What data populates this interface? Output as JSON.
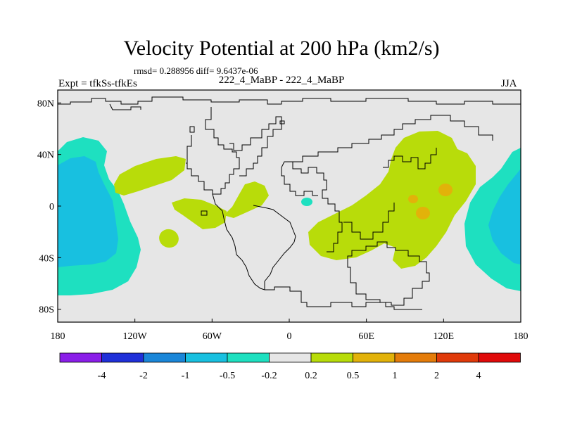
{
  "header": {
    "title": "Velocity Potential at 200 hPa (km2/s)",
    "stats": "rmsd= 0.288956 diff= 9.6437e-06",
    "expt": "Expt = tfkSs-tfkEs",
    "subtitle": "222_4_MaBP - 222_4_MaBP",
    "season": "JJA"
  },
  "map": {
    "background_color": "#e6e6e6",
    "lat_ticks": [
      {
        "value": 80,
        "label": "80N"
      },
      {
        "value": 40,
        "label": "40N"
      },
      {
        "value": 0,
        "label": "0"
      },
      {
        "value": -40,
        "label": "40S"
      },
      {
        "value": -80,
        "label": "80S"
      }
    ],
    "lon_ticks": [
      {
        "value": -180,
        "label": "180"
      },
      {
        "value": -120,
        "label": "120W"
      },
      {
        "value": -60,
        "label": "60W"
      },
      {
        "value": 0,
        "label": "0"
      },
      {
        "value": 60,
        "label": "60E"
      },
      {
        "value": 120,
        "label": "120E"
      },
      {
        "value": 180,
        "label": "180"
      }
    ]
  },
  "colorbar": {
    "colors": [
      "#8a1ee8",
      "#1f30d8",
      "#1a86d8",
      "#18c0e0",
      "#1ee0c0",
      "#e6e6e6",
      "#b8dc0a",
      "#e2b20a",
      "#e47c0a",
      "#e03a0a",
      "#e00a0a"
    ],
    "labels": [
      "-4",
      "-2",
      "-1",
      "-0.5",
      "-0.2",
      "0.2",
      "0.5",
      "1",
      "2",
      "4"
    ]
  }
}
